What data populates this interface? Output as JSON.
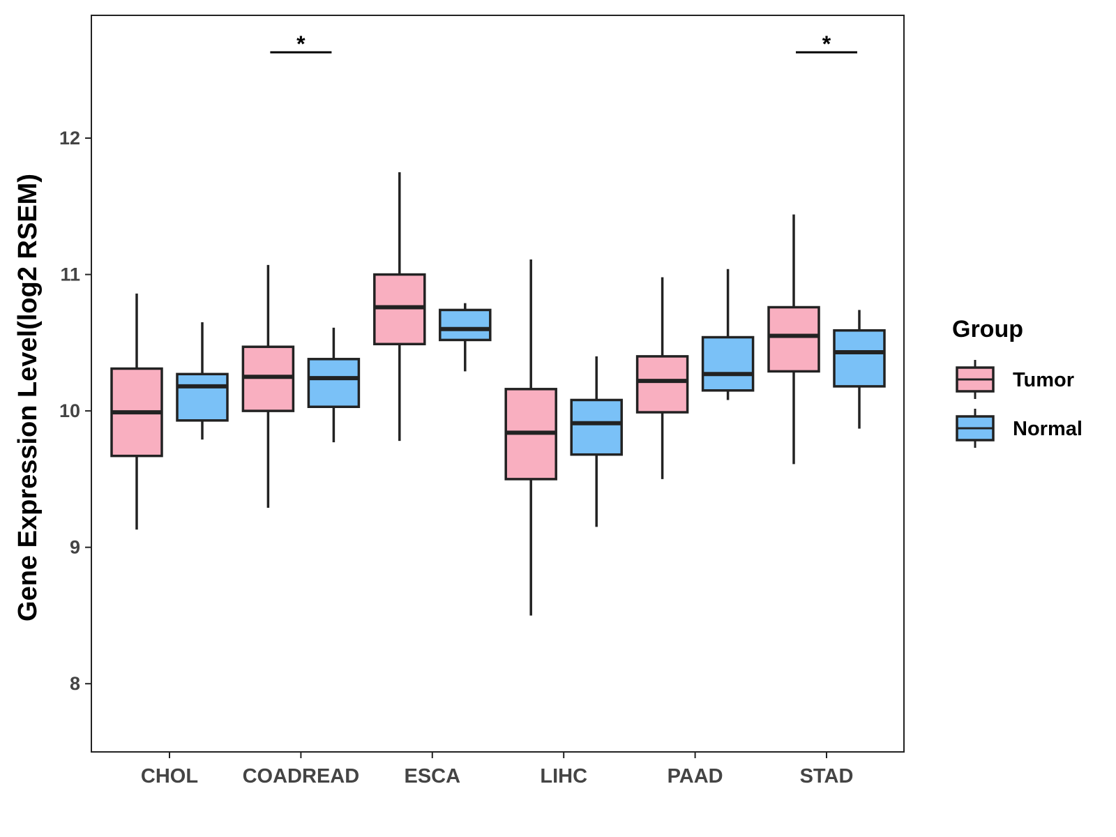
{
  "chart_data": {
    "type": "boxplot",
    "title": "",
    "xlabel": "",
    "ylabel": "Gene Expression Level(log2 RSEM)",
    "ylim": [
      7.5,
      12.9
    ],
    "yticks": [
      8,
      9,
      10,
      11,
      12
    ],
    "categories": [
      "CHOL",
      "COADREAD",
      "ESCA",
      "LIHC",
      "PAAD",
      "STAD"
    ],
    "legend": {
      "title": "Group",
      "position": "right",
      "entries": [
        {
          "name": "Tumor",
          "color": "#F9AFC0"
        },
        {
          "name": "Normal",
          "color": "#7AC1F7"
        }
      ]
    },
    "series": [
      {
        "name": "Tumor",
        "color": "#F9AFC0",
        "boxes": [
          {
            "category": "CHOL",
            "min": 9.13,
            "q1": 9.67,
            "median": 9.99,
            "q3": 10.31,
            "max": 10.86
          },
          {
            "category": "COADREAD",
            "min": 9.29,
            "q1": 10.0,
            "median": 10.25,
            "q3": 10.47,
            "max": 11.07
          },
          {
            "category": "ESCA",
            "min": 9.78,
            "q1": 10.49,
            "median": 10.76,
            "q3": 11.0,
            "max": 11.75
          },
          {
            "category": "LIHC",
            "min": 8.5,
            "q1": 9.5,
            "median": 9.84,
            "q3": 10.16,
            "max": 11.11
          },
          {
            "category": "PAAD",
            "min": 9.5,
            "q1": 9.99,
            "median": 10.22,
            "q3": 10.4,
            "max": 10.98
          },
          {
            "category": "STAD",
            "min": 9.61,
            "q1": 10.29,
            "median": 10.55,
            "q3": 10.76,
            "max": 11.44
          }
        ]
      },
      {
        "name": "Normal",
        "color": "#7AC1F7",
        "boxes": [
          {
            "category": "CHOL",
            "min": 9.79,
            "q1": 9.93,
            "median": 10.18,
            "q3": 10.27,
            "max": 10.65
          },
          {
            "category": "COADREAD",
            "min": 9.77,
            "q1": 10.03,
            "median": 10.24,
            "q3": 10.38,
            "max": 10.61
          },
          {
            "category": "ESCA",
            "min": 10.29,
            "q1": 10.52,
            "median": 10.6,
            "q3": 10.74,
            "max": 10.79
          },
          {
            "category": "LIHC",
            "min": 9.15,
            "q1": 9.68,
            "median": 9.91,
            "q3": 10.08,
            "max": 10.4
          },
          {
            "category": "PAAD",
            "min": 10.08,
            "q1": 10.15,
            "median": 10.27,
            "q3": 10.54,
            "max": 11.04
          },
          {
            "category": "STAD",
            "min": 9.87,
            "q1": 10.18,
            "median": 10.43,
            "q3": 10.59,
            "max": 10.74
          }
        ]
      }
    ],
    "significance": [
      {
        "category": "COADREAD",
        "label": "*"
      },
      {
        "category": "STAD",
        "label": "*"
      }
    ]
  }
}
